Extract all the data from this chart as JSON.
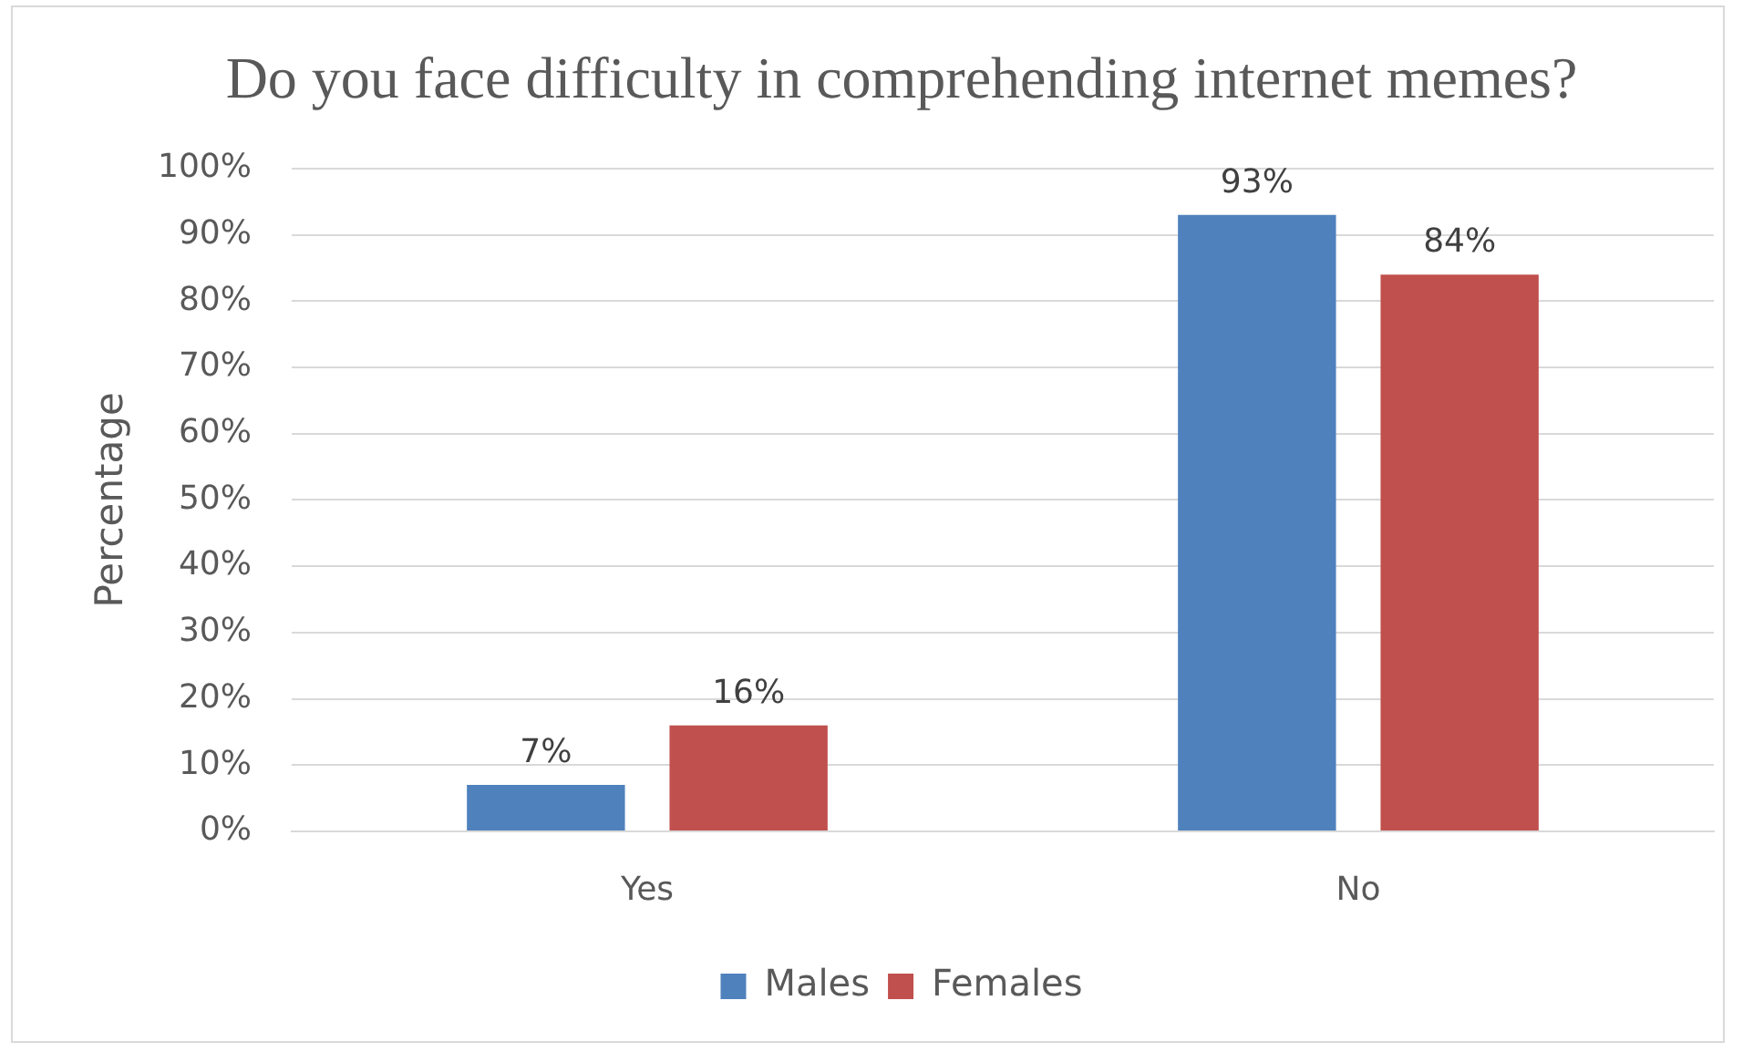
{
  "chart_data": {
    "type": "bar",
    "title": "Do you face difficulty in comprehending internet memes?",
    "ylabel": "Percentage",
    "categories": [
      "Yes",
      "No"
    ],
    "series": [
      {
        "name": "Males",
        "color": "#4f81bd",
        "values": [
          7,
          93
        ],
        "value_labels": [
          "7%",
          "93%"
        ]
      },
      {
        "name": "Females",
        "color": "#c0504d",
        "values": [
          16,
          84
        ],
        "value_labels": [
          "16%",
          "84%"
        ]
      }
    ],
    "ylim": [
      0,
      100
    ],
    "yticks": [
      {
        "value": 0,
        "label": "0%"
      },
      {
        "value": 10,
        "label": "10%"
      },
      {
        "value": 20,
        "label": "20%"
      },
      {
        "value": 30,
        "label": "30%"
      },
      {
        "value": 40,
        "label": "40%"
      },
      {
        "value": 50,
        "label": "50%"
      },
      {
        "value": 60,
        "label": "60%"
      },
      {
        "value": 70,
        "label": "70%"
      },
      {
        "value": 80,
        "label": "80%"
      },
      {
        "value": 90,
        "label": "90%"
      },
      {
        "value": 100,
        "label": "100%"
      }
    ],
    "grid": "y",
    "legend": "bottom"
  }
}
